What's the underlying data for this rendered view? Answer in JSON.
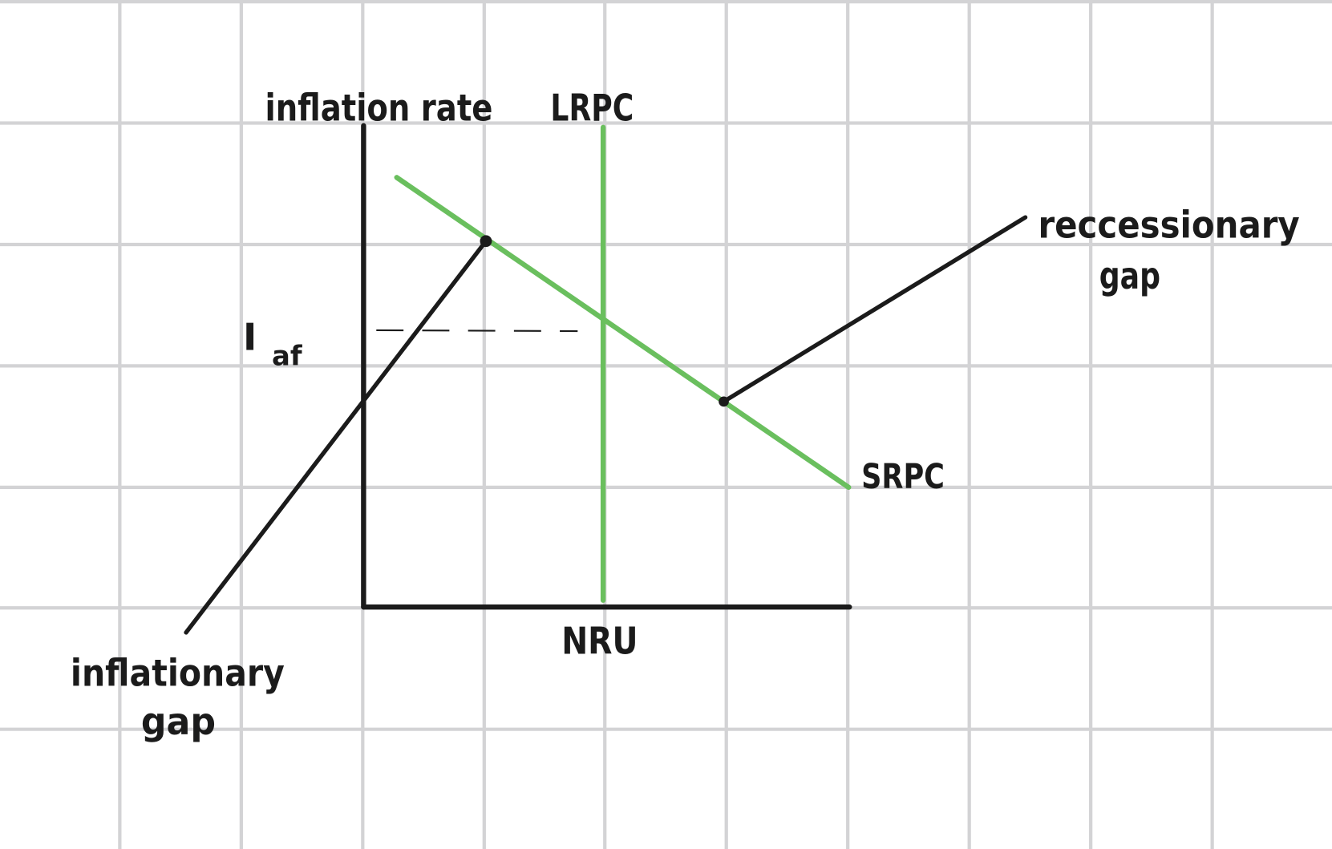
{
  "colors": {
    "grid": "#d3d3d5",
    "axis": "#1b1b1b",
    "curve": "#6abf5e",
    "background": "#ffffff"
  },
  "labels": {
    "y_axis": "inflation rate",
    "x_axis": "NRU",
    "lrpc": "LRPC",
    "srpc": "SRPC",
    "expected_inflation_main": "I",
    "expected_inflation_sub": "af",
    "recessionary_line1": "reccessionary",
    "recessionary_line2": "gap",
    "inflationary_line1": "inflationary",
    "inflationary_line2": "gap"
  }
}
